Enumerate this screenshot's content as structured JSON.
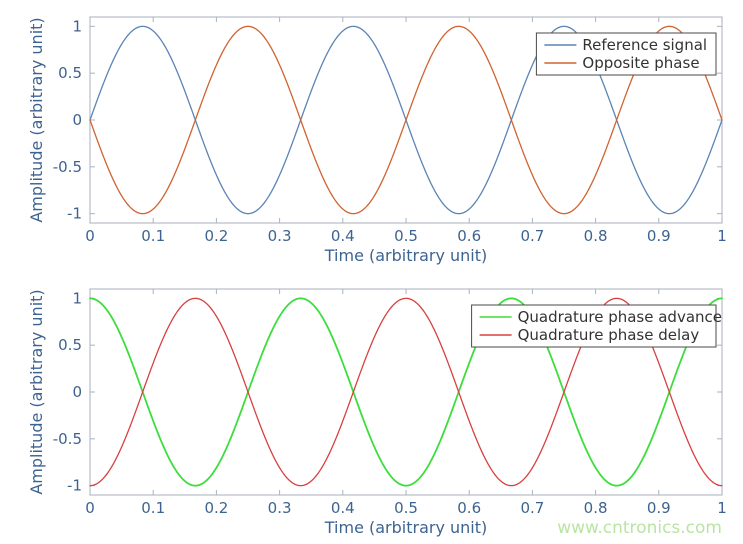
{
  "figure": {
    "background": "#ffffff"
  },
  "style": {
    "axis_color": "#a9b2bd",
    "tick_text_color": "#3d6391",
    "label_text_color": "#3d6391",
    "legend_text_color": "#333333",
    "legend_border_color": "#4a4a4a",
    "legend_background": "#ffffff"
  },
  "watermark": {
    "text": "www.cntronics.com",
    "color": "#b9e5a2"
  },
  "chart_data": [
    {
      "type": "line",
      "title": "",
      "xlabel": "Time (arbitrary unit)",
      "ylabel": "Amplitude (arbitrary unit)",
      "xlim": [
        0,
        1
      ],
      "ylim": [
        -1,
        1
      ],
      "xticks": [
        0,
        0.1,
        0.2,
        0.3,
        0.4,
        0.5,
        0.6,
        0.7,
        0.8,
        0.9,
        1
      ],
      "xtick_labels": [
        "0",
        "0.1",
        "0.2",
        "0.3",
        "0.4",
        "0.5",
        "0.6",
        "0.7",
        "0.8",
        "0.9",
        "1"
      ],
      "yticks": [
        -1,
        -0.5,
        0,
        0.5,
        1
      ],
      "ytick_labels": [
        "-1",
        "-0.5",
        "0",
        "0.5",
        "1"
      ],
      "grid": false,
      "legend_position": "top-right",
      "series": [
        {
          "name": "Reference signal",
          "color": "#5b84b4",
          "linewidth": 1.3,
          "waveform": "sine",
          "amplitude": 1,
          "cycles": 3,
          "phase_deg": 0
        },
        {
          "name": "Opposite phase",
          "color": "#d0632f",
          "linewidth": 1.3,
          "waveform": "sine",
          "amplitude": 1,
          "cycles": 3,
          "phase_deg": 180
        }
      ]
    },
    {
      "type": "line",
      "title": "",
      "xlabel": "Time (arbitrary unit)",
      "ylabel": "Amplitude (arbitrary unit)",
      "xlim": [
        0,
        1
      ],
      "ylim": [
        -1,
        1
      ],
      "xticks": [
        0,
        0.1,
        0.2,
        0.3,
        0.4,
        0.5,
        0.6,
        0.7,
        0.8,
        0.9,
        1
      ],
      "xtick_labels": [
        "0",
        "0.1",
        "0.2",
        "0.3",
        "0.4",
        "0.5",
        "0.6",
        "0.7",
        "0.8",
        "0.9",
        "1"
      ],
      "yticks": [
        -1,
        -0.5,
        0,
        0.5,
        1
      ],
      "ytick_labels": [
        "-1",
        "-0.5",
        "0",
        "0.5",
        "1"
      ],
      "grid": false,
      "legend_position": "top-right",
      "has_watermark": true,
      "series": [
        {
          "name": "Quadrature phase advance",
          "color": "#3edd3e",
          "linewidth": 1.8,
          "waveform": "sine",
          "amplitude": 1,
          "cycles": 3,
          "phase_deg": 90
        },
        {
          "name": "Quadrature phase delay",
          "color": "#d84040",
          "linewidth": 1.3,
          "waveform": "sine",
          "amplitude": 1,
          "cycles": 3,
          "phase_deg": -90
        }
      ]
    }
  ]
}
